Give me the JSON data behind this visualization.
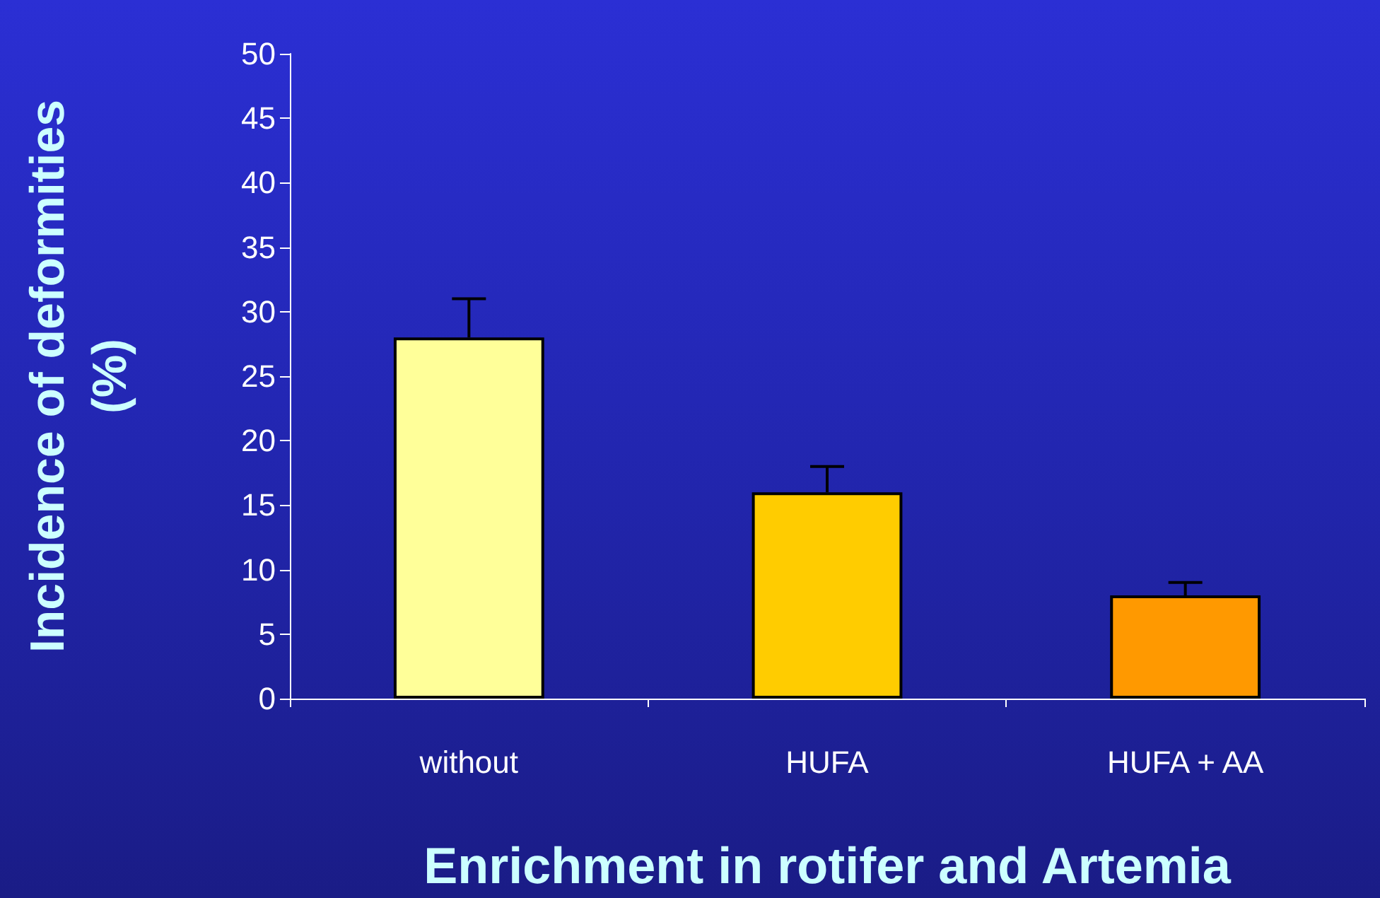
{
  "chart_data": {
    "type": "bar",
    "xlabel": "Enrichment in rotifer and Artemia",
    "ylabel": "Incidence of deformities\n(%)",
    "categories": [
      "without",
      "HUFA",
      "HUFA + AA"
    ],
    "values": [
      28,
      16,
      8
    ],
    "colors": [
      "#ffff99",
      "#ffcc00",
      "#ff9900"
    ],
    "errors": [
      [
        28,
        31
      ],
      [
        16,
        18
      ],
      [
        8,
        9
      ]
    ],
    "ylim": [
      0,
      50
    ],
    "yticks": [
      0,
      5,
      10,
      15,
      20,
      25,
      30,
      35,
      40,
      45,
      50
    ],
    "grid": false
  }
}
